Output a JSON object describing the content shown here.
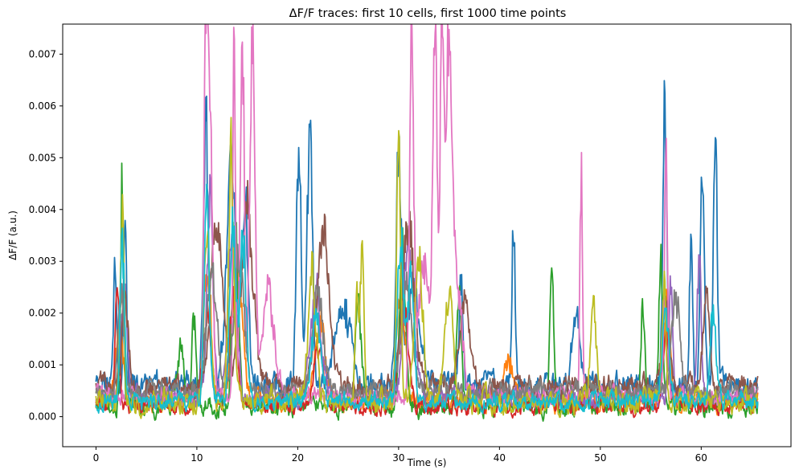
{
  "chart_data": {
    "type": "line",
    "title": "ΔF/F traces: first 10 cells, first 1000 time points",
    "xlabel": "Time (s)",
    "ylabel": "ΔF/F (a.u.)",
    "xlim": [
      -3.3,
      68.9
    ],
    "ylim": [
      -0.00058,
      0.00758
    ],
    "x_ticks": [
      0,
      10,
      20,
      30,
      40,
      50,
      60
    ],
    "x_tick_labels": [
      "0",
      "10",
      "20",
      "30",
      "40",
      "50",
      "60"
    ],
    "y_ticks": [
      0,
      0.001,
      0.002,
      0.003,
      0.004,
      0.005,
      0.006,
      0.007
    ],
    "y_tick_labels": [
      "0.000",
      "0.001",
      "0.002",
      "0.003",
      "0.004",
      "0.005",
      "0.006",
      "0.007"
    ],
    "legend": "none",
    "grid": false,
    "x_range": [
      0,
      65.6
    ],
    "n_points": 1000,
    "series": [
      {
        "color": "#1f77b4",
        "baseline": 0.0006,
        "noise": 0.0002,
        "peaks": [
          [
            1.9,
            0.0026,
            0.15
          ],
          [
            2.9,
            0.0033,
            0.15
          ],
          [
            10.9,
            0.0051,
            0.25
          ],
          [
            13.4,
            0.0042,
            0.5
          ],
          [
            14.8,
            0.0036,
            0.3
          ],
          [
            20.1,
            0.0044,
            0.25
          ],
          [
            21.2,
            0.0054,
            0.25
          ],
          [
            24.5,
            0.0015,
            0.8
          ],
          [
            30.0,
            0.0045,
            0.25
          ],
          [
            31.5,
            0.0019,
            0.6
          ],
          [
            36.2,
            0.0022,
            0.2
          ],
          [
            41.4,
            0.0033,
            0.15
          ],
          [
            47.6,
            0.0013,
            0.4
          ],
          [
            56.4,
            0.0052,
            0.2
          ],
          [
            59.0,
            0.0031,
            0.15
          ],
          [
            60.1,
            0.0038,
            0.2
          ],
          [
            61.4,
            0.0047,
            0.2
          ]
        ]
      },
      {
        "color": "#ff7f0e",
        "baseline": 0.0003,
        "noise": 0.00015,
        "peaks": [
          [
            2.3,
            0.0015,
            0.4
          ],
          [
            11.0,
            0.0025,
            0.4
          ],
          [
            14.0,
            0.0028,
            0.5
          ],
          [
            22.2,
            0.0015,
            0.5
          ],
          [
            30.2,
            0.0022,
            0.4
          ],
          [
            41.0,
            0.0008,
            0.5
          ],
          [
            56.6,
            0.0018,
            0.3
          ]
        ]
      },
      {
        "color": "#2ca02c",
        "baseline": 0.0002,
        "noise": 0.00015,
        "peaks": [
          [
            2.6,
            0.0043,
            0.15
          ],
          [
            8.4,
            0.0012,
            0.3
          ],
          [
            9.7,
            0.0018,
            0.2
          ],
          [
            13.8,
            0.0035,
            0.3
          ],
          [
            26.0,
            0.0021,
            0.3
          ],
          [
            30.4,
            0.0031,
            0.3
          ],
          [
            36.0,
            0.0022,
            0.25
          ],
          [
            45.2,
            0.0023,
            0.2
          ],
          [
            54.2,
            0.002,
            0.2
          ],
          [
            56.0,
            0.0028,
            0.2
          ]
        ]
      },
      {
        "color": "#d62728",
        "baseline": 0.0002,
        "noise": 0.00012,
        "peaks": [
          [
            2.1,
            0.0022,
            0.2
          ],
          [
            11.0,
            0.0018,
            0.4
          ],
          [
            13.6,
            0.0021,
            0.4
          ],
          [
            22.0,
            0.0011,
            0.5
          ],
          [
            30.5,
            0.0017,
            0.5
          ],
          [
            56.5,
            0.0014,
            0.3
          ]
        ]
      },
      {
        "color": "#9467bd",
        "baseline": 0.0004,
        "noise": 0.00015,
        "peaks": [
          [
            2.8,
            0.0021,
            0.3
          ],
          [
            11.3,
            0.0038,
            0.3
          ],
          [
            13.5,
            0.0031,
            0.4
          ],
          [
            21.8,
            0.0022,
            0.5
          ],
          [
            31.0,
            0.0029,
            0.5
          ],
          [
            57.0,
            0.0022,
            0.2
          ],
          [
            59.8,
            0.0026,
            0.2
          ]
        ]
      },
      {
        "color": "#8c564b",
        "baseline": 0.0006,
        "noise": 0.00017,
        "peaks": [
          [
            2.9,
            0.0018,
            0.3
          ],
          [
            12.0,
            0.003,
            0.6
          ],
          [
            15.0,
            0.0033,
            0.6
          ],
          [
            22.5,
            0.0031,
            0.6
          ],
          [
            31.0,
            0.003,
            0.6
          ],
          [
            36.5,
            0.0016,
            0.5
          ],
          [
            56.5,
            0.0016,
            0.3
          ],
          [
            60.5,
            0.0019,
            0.3
          ]
        ]
      },
      {
        "color": "#e377c2",
        "baseline": 0.0004,
        "noise": 0.00013,
        "peaks": [
          [
            10.9,
            0.0061,
            0.2
          ],
          [
            11.3,
            0.005,
            0.25
          ],
          [
            13.7,
            0.0071,
            0.12
          ],
          [
            14.5,
            0.0069,
            0.2
          ],
          [
            15.5,
            0.007,
            0.25
          ],
          [
            17.1,
            0.0019,
            0.6
          ],
          [
            31.3,
            0.0065,
            0.2
          ],
          [
            32.5,
            0.0024,
            0.6
          ],
          [
            33.6,
            0.0069,
            0.2
          ],
          [
            34.3,
            0.0068,
            0.2
          ],
          [
            35.0,
            0.0065,
            0.3
          ],
          [
            35.8,
            0.0021,
            0.5
          ],
          [
            48.1,
            0.0042,
            0.12
          ],
          [
            56.5,
            0.0049,
            0.15
          ]
        ]
      },
      {
        "color": "#7f7f7f",
        "baseline": 0.0005,
        "noise": 0.00015,
        "peaks": [
          [
            2.5,
            0.0019,
            0.3
          ],
          [
            11.5,
            0.0022,
            0.5
          ],
          [
            14.2,
            0.0025,
            0.5
          ],
          [
            22.0,
            0.0019,
            0.5
          ],
          [
            30.8,
            0.0021,
            0.5
          ],
          [
            57.5,
            0.0018,
            0.4
          ]
        ]
      },
      {
        "color": "#bcbd22",
        "baseline": 0.0003,
        "noise": 0.00018,
        "peaks": [
          [
            2.6,
            0.0038,
            0.2
          ],
          [
            11.0,
            0.0032,
            0.3
          ],
          [
            13.4,
            0.0047,
            0.25
          ],
          [
            21.4,
            0.0023,
            0.4
          ],
          [
            25.9,
            0.0022,
            0.2
          ],
          [
            26.4,
            0.0034,
            0.15
          ],
          [
            30.0,
            0.005,
            0.2
          ],
          [
            32.0,
            0.0028,
            0.4
          ],
          [
            35.0,
            0.0021,
            0.4
          ],
          [
            49.3,
            0.0018,
            0.3
          ],
          [
            56.3,
            0.0021,
            0.2
          ]
        ]
      },
      {
        "color": "#17becf",
        "baseline": 0.0003,
        "noise": 0.00013,
        "peaks": [
          [
            2.6,
            0.0032,
            0.2
          ],
          [
            11.0,
            0.004,
            0.25
          ],
          [
            13.6,
            0.0036,
            0.3
          ],
          [
            14.6,
            0.0032,
            0.3
          ],
          [
            21.8,
            0.0015,
            0.5
          ],
          [
            30.2,
            0.0032,
            0.3
          ],
          [
            31.2,
            0.0024,
            0.3
          ],
          [
            56.5,
            0.0018,
            0.3
          ],
          [
            61.2,
            0.0017,
            0.3
          ]
        ]
      }
    ]
  }
}
